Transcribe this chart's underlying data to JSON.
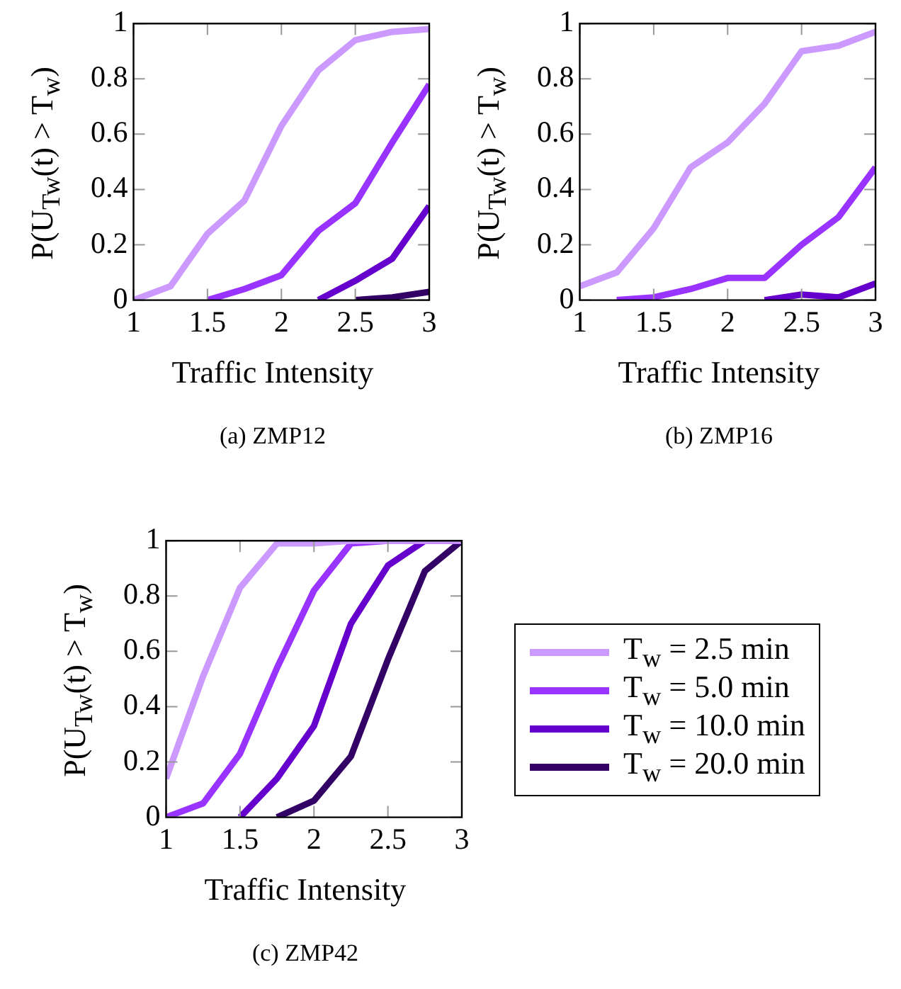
{
  "chart_data": [
    {
      "type": "line",
      "xlabel": "Traffic Intensity",
      "ylabel": "P(U$_{Tw}$(t) > T$_{w}$)",
      "annotations": [
        "(a) ZMP12"
      ],
      "x": [
        1,
        1.25,
        1.5,
        1.75,
        2,
        2.25,
        2.5,
        2.75,
        3
      ],
      "xlim": [
        1,
        3
      ],
      "ylim": [
        0,
        1
      ],
      "xticks": [
        1,
        1.5,
        2,
        2.5,
        3
      ],
      "yticks": [
        0,
        0.2,
        0.4,
        0.6,
        0.8,
        1
      ],
      "grid": false,
      "legend": false,
      "series": [
        {
          "color": "#cc99ff",
          "values": [
            0,
            0.05,
            0.24,
            0.36,
            0.63,
            0.83,
            0.94,
            0.97,
            0.98
          ]
        },
        {
          "color": "#9933ff",
          "values": [
            null,
            null,
            0,
            0.04,
            0.09,
            0.25,
            0.35,
            0.57,
            0.78
          ]
        },
        {
          "color": "#6600cc",
          "values": [
            null,
            null,
            null,
            null,
            null,
            0,
            0.07,
            0.15,
            0.34
          ]
        },
        {
          "color": "#330066",
          "values": [
            null,
            null,
            null,
            null,
            null,
            null,
            0,
            0.01,
            0.03
          ]
        }
      ]
    },
    {
      "type": "line",
      "xlabel": "Traffic Intensity",
      "ylabel": "P(U$_{Tw}$(t) > T$_{w}$)",
      "annotations": [
        "(b) ZMP16"
      ],
      "x": [
        1,
        1.25,
        1.5,
        1.75,
        2,
        2.25,
        2.5,
        2.75,
        3
      ],
      "xlim": [
        1,
        3
      ],
      "ylim": [
        0,
        1
      ],
      "xticks": [
        1,
        1.5,
        2,
        2.5,
        3
      ],
      "yticks": [
        0,
        0.2,
        0.4,
        0.6,
        0.8,
        1
      ],
      "grid": false,
      "legend": false,
      "series": [
        {
          "color": "#cc99ff",
          "values": [
            0.05,
            0.1,
            0.26,
            0.48,
            0.57,
            0.71,
            0.9,
            0.92,
            0.97
          ]
        },
        {
          "color": "#9933ff",
          "values": [
            null,
            0,
            0.01,
            0.04,
            0.08,
            0.08,
            0.2,
            0.3,
            0.48
          ]
        },
        {
          "color": "#6600cc",
          "values": [
            null,
            null,
            null,
            null,
            null,
            0,
            0.02,
            0.01,
            0.06
          ]
        }
      ]
    },
    {
      "type": "line",
      "xlabel": "Traffic Intensity",
      "ylabel": "P(U$_{Tw}$(t) > T$_{w}$)",
      "annotations": [
        "(c) ZMP42"
      ],
      "x": [
        1,
        1.25,
        1.5,
        1.75,
        2,
        2.25,
        2.5,
        2.75,
        3
      ],
      "xlim": [
        1,
        3
      ],
      "ylim": [
        0,
        1
      ],
      "xticks": [
        1,
        1.5,
        2,
        2.5,
        3
      ],
      "yticks": [
        0,
        0.2,
        0.4,
        0.6,
        0.8,
        1
      ],
      "grid": false,
      "legend": "right",
      "series": [
        {
          "name": "T$_{w}$ = 2.5 min",
          "color": "#cc99ff",
          "values": [
            0.14,
            0.51,
            0.83,
            0.99,
            0.99,
            1,
            1,
            1,
            1
          ]
        },
        {
          "name": "T$_{w}$ = 5.0 min",
          "color": "#9933ff",
          "values": [
            0,
            0.05,
            0.23,
            0.54,
            0.82,
            0.99,
            1,
            1,
            1
          ]
        },
        {
          "name": "T$_{w}$ = 10.0 min",
          "color": "#6600cc",
          "values": [
            null,
            null,
            0,
            0.14,
            0.33,
            0.7,
            0.91,
            1,
            1
          ]
        },
        {
          "name": "T$_{w}$ = 20.0 min",
          "color": "#330066",
          "values": [
            null,
            null,
            null,
            0,
            0.06,
            0.22,
            0.57,
            0.89,
            1
          ]
        }
      ]
    }
  ]
}
